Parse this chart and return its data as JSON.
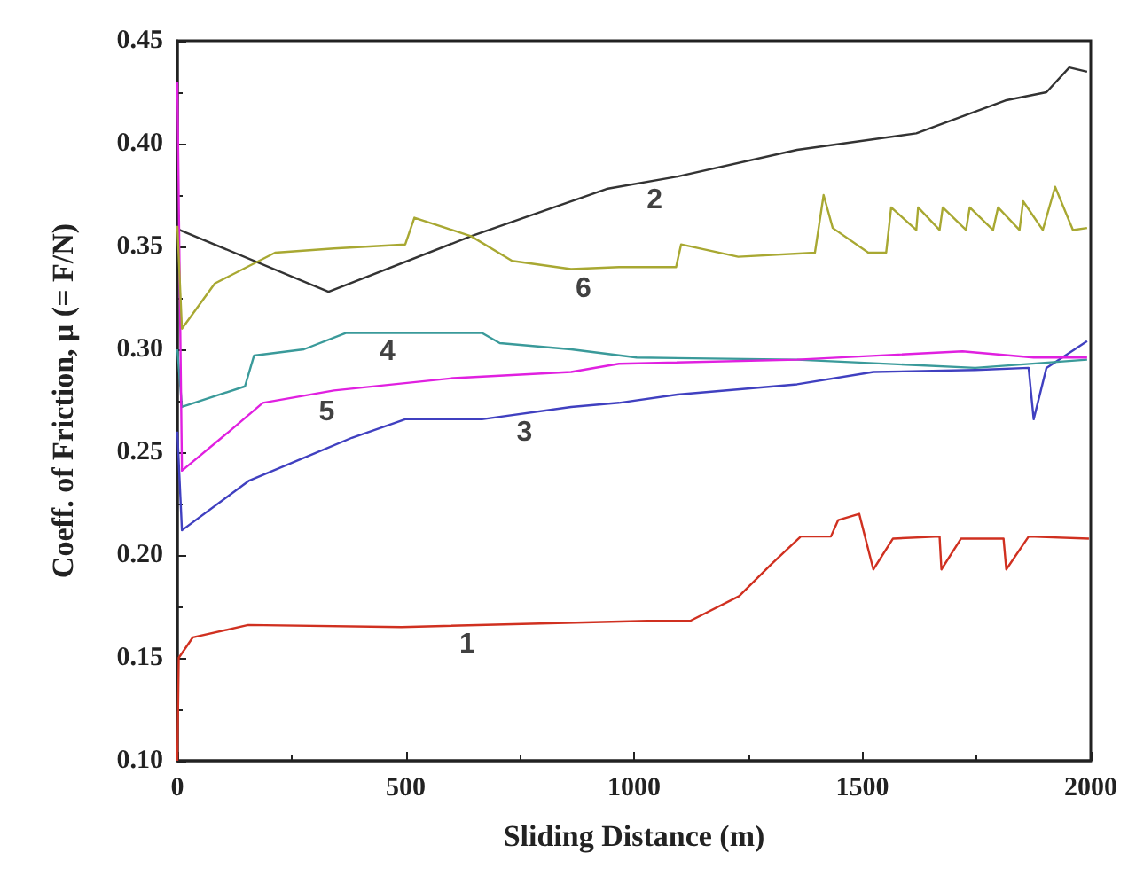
{
  "chart_data": {
    "type": "line",
    "xlabel": "Sliding Distance (m)",
    "ylabel": "Coeff. of Friction, μ (= F/N)",
    "xlim": [
      0,
      2000
    ],
    "xticks": [
      0,
      500,
      1000,
      1500,
      2000
    ],
    "ylim": [
      0.1,
      0.45
    ],
    "yticks": [
      {
        "value": 0.1,
        "label": "0.10"
      },
      0.15,
      {
        "value": 0.2,
        "label": "0.20"
      },
      0.25,
      {
        "value": 0.3,
        "label": "0.30"
      },
      0.35,
      {
        "value": 0.4,
        "label": "0.40"
      },
      0.45
    ],
    "grid": false,
    "marker": "none",
    "line_style": "solid",
    "series": [
      {
        "color": "#d03020",
        "x": [
          0,
          3,
          34,
          155,
          491,
          1029,
          1123,
          1230,
          1298,
          1365,
          1431,
          1447,
          1493,
          1524,
          1567,
          1669,
          1673,
          1716,
          1809,
          1815,
          1864,
          1996
        ],
        "values": [
          0.1,
          0.15,
          0.16,
          0.166,
          0.165,
          0.168,
          0.168,
          0.18,
          0.195,
          0.209,
          0.209,
          0.217,
          0.22,
          0.193,
          0.208,
          0.209,
          0.193,
          0.208,
          0.208,
          0.193,
          0.209,
          0.208
        ]
      },
      {
        "color": "#333333",
        "x": [
          0,
          5,
          331,
          643,
          940,
          1095,
          1357,
          1618,
          1813,
          1903,
          1953,
          1992
        ],
        "values": [
          0.36,
          0.358,
          0.328,
          0.355,
          0.378,
          0.384,
          0.397,
          0.405,
          0.421,
          0.425,
          0.437,
          0.435
        ]
      },
      {
        "color": "#4040c0",
        "x": [
          0,
          10,
          156,
          382,
          499,
          667,
          862,
          967,
          1095,
          1357,
          1524,
          1747,
          1864,
          1875,
          1903,
          1992
        ],
        "values": [
          0.26,
          0.212,
          0.236,
          0.257,
          0.266,
          0.266,
          0.272,
          0.274,
          0.278,
          0.283,
          0.289,
          0.29,
          0.291,
          0.266,
          0.291,
          0.304
        ]
      },
      {
        "color": "#3a9a9a",
        "x": [
          0,
          10,
          148,
          168,
          277,
          370,
          667,
          706,
          862,
          1006,
          1357,
          1747,
          1992
        ],
        "values": [
          0.3,
          0.272,
          0.282,
          0.297,
          0.3,
          0.308,
          0.308,
          0.303,
          0.3,
          0.296,
          0.295,
          0.291,
          0.295
        ]
      },
      {
        "color": "#e020e0",
        "x": [
          0,
          10,
          113,
          187,
          343,
          604,
          862,
          967,
          1357,
          1719,
          1875,
          1992
        ],
        "values": [
          0.43,
          0.241,
          0.26,
          0.274,
          0.28,
          0.286,
          0.289,
          0.293,
          0.295,
          0.299,
          0.296,
          0.296
        ]
      },
      {
        "color": "#a8a832",
        "x": [
          0,
          10,
          82,
          214,
          343,
          499,
          519,
          643,
          733,
          862,
          967,
          1092,
          1103,
          1228,
          1396,
          1415,
          1435,
          1513,
          1552,
          1563,
          1618,
          1622,
          1669,
          1676,
          1727,
          1735,
          1786,
          1797,
          1844,
          1852,
          1895,
          1922,
          1961,
          1992
        ],
        "values": [
          0.36,
          0.31,
          0.332,
          0.347,
          0.349,
          0.351,
          0.364,
          0.355,
          0.343,
          0.339,
          0.34,
          0.34,
          0.351,
          0.345,
          0.347,
          0.375,
          0.359,
          0.347,
          0.347,
          0.369,
          0.358,
          0.369,
          0.358,
          0.369,
          0.358,
          0.369,
          0.358,
          0.369,
          0.358,
          0.372,
          0.358,
          0.379,
          0.358,
          0.359
        ]
      }
    ],
    "annotations": [
      {
        "text": "1",
        "x": 635,
        "y": 0.166
      },
      {
        "text": "2",
        "x": 1045,
        "y": 0.382
      },
      {
        "text": "3",
        "x": 760,
        "y": 0.269
      },
      {
        "text": "4",
        "x": 460,
        "y": 0.308
      },
      {
        "text": "5",
        "x": 327,
        "y": 0.279
      },
      {
        "text": "6",
        "x": 889,
        "y": 0.339
      }
    ]
  }
}
